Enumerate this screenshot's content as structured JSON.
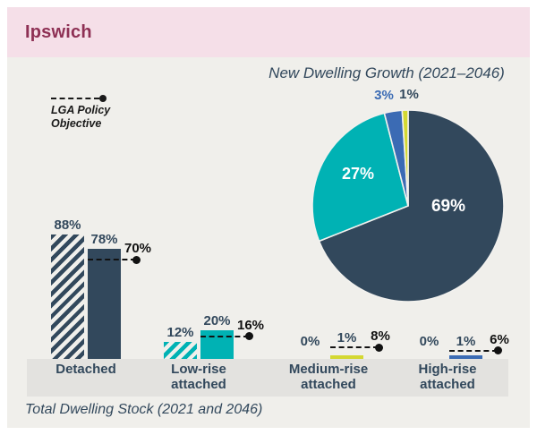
{
  "header": {
    "title": "Ipswich"
  },
  "legend": {
    "label": "LGA Policy Objective",
    "lines": [
      "LGA Policy",
      "Objective"
    ]
  },
  "colors": {
    "navy": "#32485c",
    "teal": "#00b2b4",
    "blue": "#3b6bb4",
    "yellow": "#d4d832",
    "header_bg": "#f5dfe8",
    "header_text": "#8e3054",
    "body_bg": "#f0efeb",
    "band_bg": "#e3e2df",
    "policy_black": "#111111"
  },
  "chart_data": [
    {
      "type": "pie",
      "title": "New Dwelling Growth (2021–2046)",
      "legend_position": "none",
      "slices": [
        {
          "label": "Detached",
          "value": 69,
          "color": "#32485c",
          "label_color": "#ffffff",
          "label_inside": true
        },
        {
          "label": "Low-rise attached",
          "value": 27,
          "color": "#00b2b4",
          "label_color": "#ffffff",
          "label_inside": true
        },
        {
          "label": "High-rise attached",
          "value": 3,
          "color": "#3b6bb4",
          "label_color": "#3b6bb4",
          "label_inside": false
        },
        {
          "label": "Medium-rise attached",
          "value": 1,
          "color": "#d4d832",
          "label_color": "#32485c",
          "label_inside": false
        }
      ]
    },
    {
      "type": "bar",
      "title": "Total Dwelling Stock (2021 and 2046)",
      "categories": [
        "Detached",
        "Low-rise attached",
        "Medium-rise attached",
        "High-rise attached"
      ],
      "category_lines": [
        [
          "Detached"
        ],
        [
          "Low-rise",
          "attached"
        ],
        [
          "Medium-rise",
          "attached"
        ],
        [
          "High-rise",
          "attached"
        ]
      ],
      "series": [
        {
          "name": "2021",
          "style": "hatched",
          "values": [
            88,
            12,
            0,
            0
          ]
        },
        {
          "name": "2046",
          "style": "solid",
          "values": [
            78,
            20,
            1,
            1
          ]
        },
        {
          "name": "LGA Policy Objective",
          "style": "dashed-line-marker",
          "values": [
            70,
            16,
            8,
            6
          ]
        }
      ],
      "group_colors": [
        "#32485c",
        "#00b2b4",
        "#d4d832",
        "#3b6bb4"
      ],
      "value_suffix": "%",
      "ylim": [
        0,
        100
      ],
      "grid": false
    }
  ]
}
